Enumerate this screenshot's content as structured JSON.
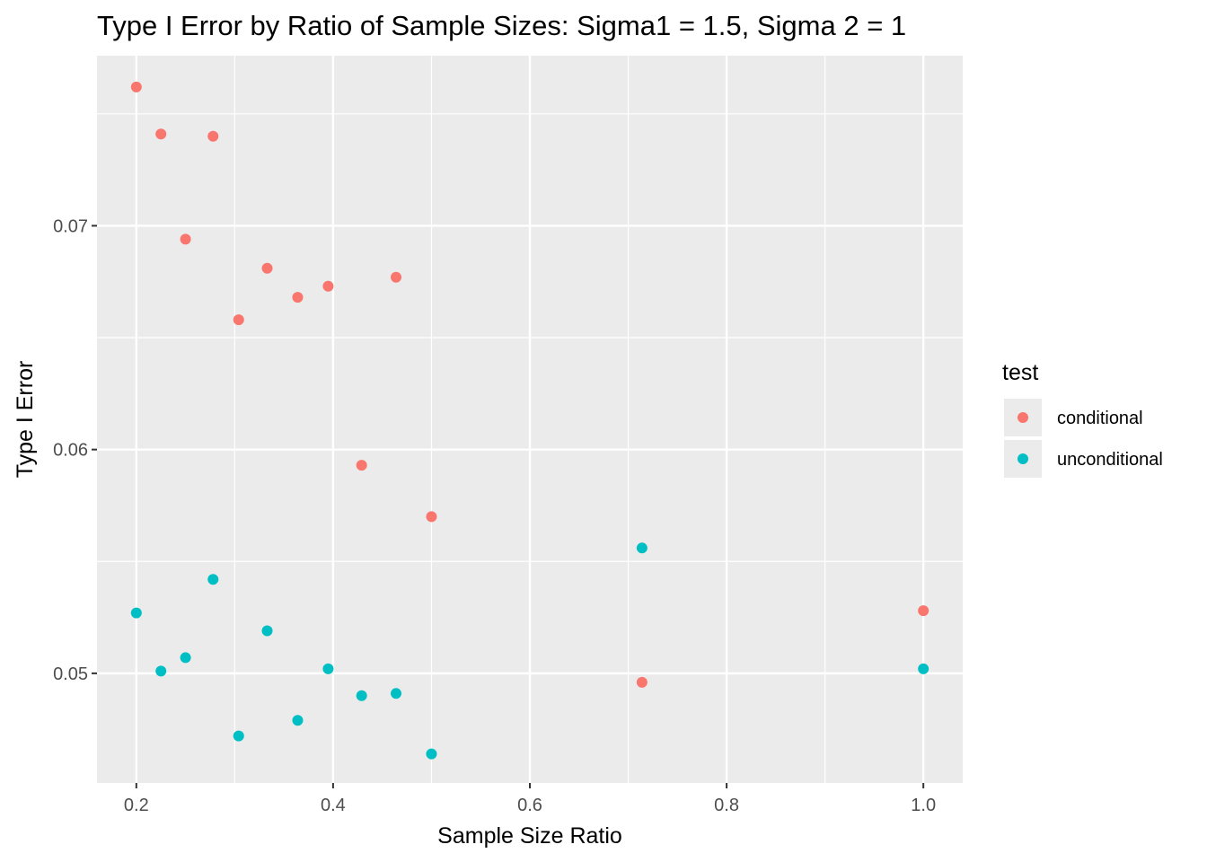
{
  "chart_data": {
    "type": "scatter",
    "title": "Type I Error by Ratio of Sample Sizes: Sigma1 = 1.5, Sigma 2 = 1",
    "xlabel": "Sample Size Ratio",
    "ylabel": "Type I Error",
    "xlim": [
      0.16,
      1.04
    ],
    "ylim": [
      0.0451,
      0.0776
    ],
    "x_ticks": [
      0.2,
      0.4,
      0.6,
      0.8,
      1.0
    ],
    "x_tick_labels": [
      "0.2",
      "0.4",
      "0.6",
      "0.8",
      "1.0"
    ],
    "x_minor_ticks": [
      0.3,
      0.5,
      0.7,
      0.9
    ],
    "y_ticks": [
      0.05,
      0.06,
      0.07
    ],
    "y_tick_labels": [
      "0.05",
      "0.06",
      "0.07"
    ],
    "y_minor_ticks": [
      0.055,
      0.065,
      0.075
    ],
    "grid": true,
    "legend_title": "test",
    "legend_position": "right",
    "series": [
      {
        "name": "conditional",
        "color": "#F8766D",
        "x": [
          0.2,
          0.225,
          0.25,
          0.278,
          0.304,
          0.333,
          0.364,
          0.395,
          0.429,
          0.464,
          0.5,
          0.714,
          1.0
        ],
        "y": [
          0.0762,
          0.0741,
          0.0694,
          0.074,
          0.0658,
          0.0681,
          0.0668,
          0.0673,
          0.0593,
          0.0677,
          0.057,
          0.0496,
          0.0528
        ]
      },
      {
        "name": "unconditional",
        "color": "#00BFC4",
        "x": [
          0.2,
          0.225,
          0.25,
          0.278,
          0.304,
          0.333,
          0.364,
          0.395,
          0.429,
          0.464,
          0.5,
          0.714,
          1.0
        ],
        "y": [
          0.0527,
          0.0501,
          0.0507,
          0.0542,
          0.0472,
          0.0519,
          0.0479,
          0.0502,
          0.049,
          0.0491,
          0.0464,
          0.0556,
          0.0502
        ]
      }
    ]
  }
}
